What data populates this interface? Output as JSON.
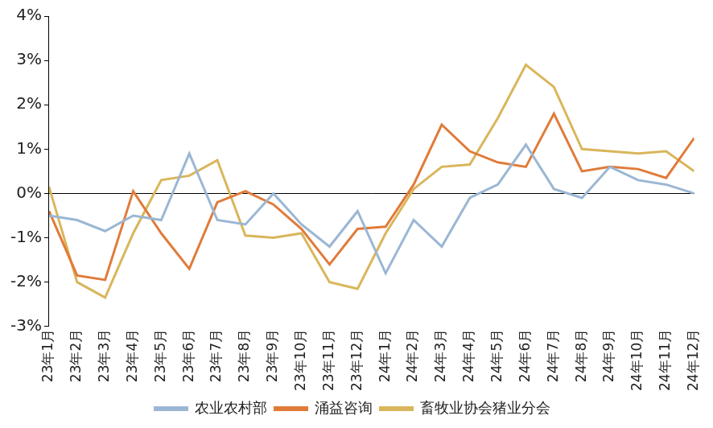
{
  "chart_data": {
    "type": "line",
    "categories": [
      "23年1月",
      "23年2月",
      "23年3月",
      "23年4月",
      "23年5月",
      "23年6月",
      "23年7月",
      "23年8月",
      "23年9月",
      "23年10月",
      "23年11月",
      "23年12月",
      "24年1月",
      "24年2月",
      "24年3月",
      "24年4月",
      "24年5月",
      "24年6月",
      "24年7月",
      "24年8月",
      "24年9月",
      "24年10月",
      "24年11月",
      "24年12月"
    ],
    "series": [
      {
        "name": "农业农村部",
        "color": "#9bb7d4",
        "values": [
          -0.5,
          -0.6,
          -0.85,
          -0.5,
          -0.6,
          0.9,
          -0.6,
          -0.7,
          0.0,
          -0.7,
          -1.2,
          -0.4,
          -1.8,
          -0.6,
          -1.2,
          -0.1,
          0.2,
          1.1,
          0.1,
          -0.1,
          0.6,
          0.3,
          0.2,
          0.0
        ]
      },
      {
        "name": "涌益咨询",
        "color": "#e07b39",
        "values": [
          -0.4,
          -1.85,
          -1.95,
          0.05,
          -0.9,
          -1.7,
          -0.2,
          0.05,
          -0.25,
          -0.8,
          -1.6,
          -0.8,
          -0.75,
          0.2,
          1.55,
          0.95,
          0.7,
          0.6,
          1.8,
          0.5,
          0.6,
          0.55,
          0.35,
          1.25
        ]
      },
      {
        "name": "畜牧业协会猪业分会",
        "color": "#d9b65b",
        "values": [
          0.15,
          -2.0,
          -2.35,
          -0.9,
          0.3,
          0.4,
          0.75,
          -0.95,
          -1.0,
          -0.9,
          -2.0,
          -2.15,
          -0.9,
          0.1,
          0.6,
          0.65,
          1.7,
          2.9,
          2.4,
          1.0,
          0.95,
          0.9,
          0.95,
          0.5
        ]
      }
    ],
    "ylim": [
      -3,
      4
    ],
    "yticks": [
      {
        "value": -3,
        "label": "-3%"
      },
      {
        "value": -2,
        "label": "-2%"
      },
      {
        "value": -1,
        "label": "-1%"
      },
      {
        "value": 0,
        "label": "0%"
      },
      {
        "value": 1,
        "label": "1%"
      },
      {
        "value": 2,
        "label": "2%"
      },
      {
        "value": 3,
        "label": "3%"
      },
      {
        "value": 4,
        "label": "4%"
      }
    ],
    "grid": false,
    "legend": "bottom"
  }
}
